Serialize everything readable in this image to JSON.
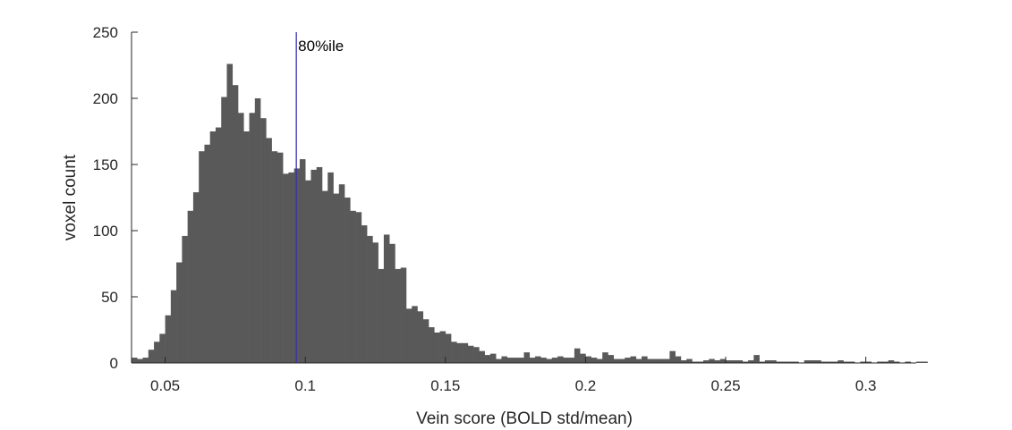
{
  "chart_data": {
    "type": "bar",
    "xlabel": "Vein score (BOLD std/mean)",
    "ylabel": "voxel count",
    "xlim": [
      0.038,
      0.318
    ],
    "ylim": [
      0,
      250
    ],
    "xticks": [
      0.05,
      0.1,
      0.15,
      0.2,
      0.25,
      0.3
    ],
    "xtick_labels": [
      "0.05",
      "0.1",
      "0.15",
      "0.2",
      "0.25",
      "0.3"
    ],
    "yticks": [
      0,
      50,
      100,
      150,
      200,
      250
    ],
    "ytick_labels": [
      "0",
      "50",
      "100",
      "150",
      "200",
      "250"
    ],
    "grid": false,
    "bin_start": 0.038,
    "bin_width": 0.002,
    "counts": [
      4,
      3,
      4,
      10,
      16,
      22,
      36,
      55,
      76,
      96,
      115,
      129,
      160,
      165,
      175,
      178,
      201,
      226,
      210,
      189,
      175,
      189,
      200,
      185,
      170,
      160,
      159,
      143,
      144,
      147,
      154,
      138,
      146,
      148,
      130,
      144,
      128,
      135,
      125,
      115,
      114,
      104,
      96,
      91,
      71,
      97,
      90,
      71,
      72,
      41,
      43,
      39,
      33,
      27,
      23,
      24,
      22,
      16,
      15,
      15,
      13,
      12,
      9,
      6,
      7,
      3,
      5,
      4,
      4,
      4,
      8,
      4,
      5,
      4,
      3,
      4,
      5,
      4,
      4,
      11,
      7,
      5,
      4,
      3,
      8,
      6,
      3,
      3,
      4,
      5,
      3,
      5,
      3,
      3,
      3,
      3,
      9,
      5,
      2,
      3,
      1,
      1,
      2,
      3,
      2,
      3,
      2,
      2,
      2,
      1,
      2,
      6,
      1,
      2,
      2,
      1,
      1,
      1,
      1,
      0,
      2,
      2,
      2,
      1,
      1,
      1,
      2,
      1,
      1,
      0,
      1,
      1,
      0,
      1,
      1,
      2,
      1,
      0,
      1,
      0,
      1,
      1
    ],
    "bar_color": "#595959",
    "annotation": {
      "label": "80%ile",
      "x": 0.0968,
      "line_color": "#3333aa"
    }
  }
}
